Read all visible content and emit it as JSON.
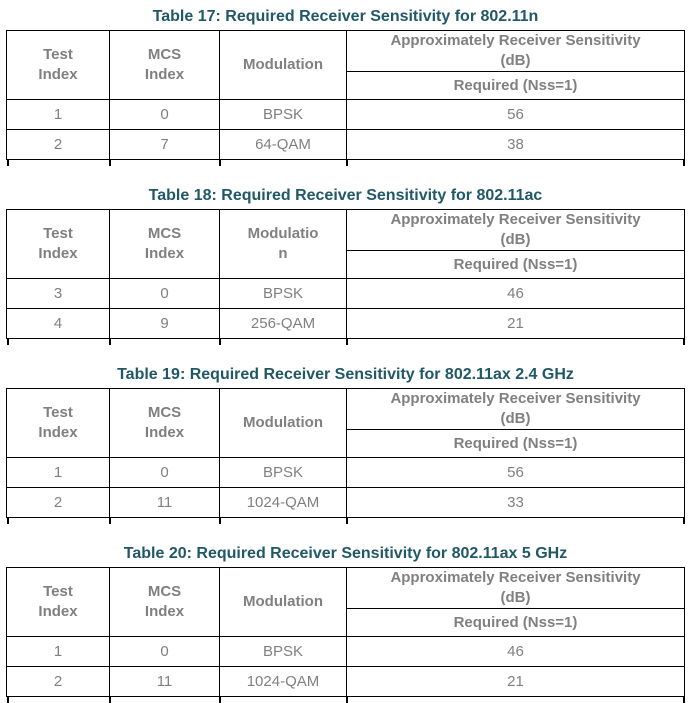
{
  "colors": {
    "title_text": "#215868",
    "table_text": "#808080",
    "border": "#000000",
    "background": "#ffffff"
  },
  "tables": [
    {
      "title": "Table 17: Required Receiver Sensitivity for 802.11n",
      "headers": {
        "test_index": "Test\nIndex",
        "mcs_index": "MCS\nIndex",
        "modulation": "Modulation",
        "sensitivity": "Approximately Receiver Sensitivity\n(dB)",
        "required": "Required (Nss=1)"
      },
      "rows": [
        {
          "test_index": "1",
          "mcs_index": "0",
          "modulation": "BPSK",
          "required": "56"
        },
        {
          "test_index": "2",
          "mcs_index": "7",
          "modulation": "64-QAM",
          "required": "38"
        }
      ]
    },
    {
      "title": "Table 18: Required Receiver Sensitivity for 802.11ac",
      "headers": {
        "test_index": "Test\nIndex",
        "mcs_index": "MCS\nIndex",
        "modulation": "Modulatio\nn",
        "sensitivity": "Approximately Receiver Sensitivity\n(dB)",
        "required": "Required (Nss=1)"
      },
      "rows": [
        {
          "test_index": "3",
          "mcs_index": "0",
          "modulation": "BPSK",
          "required": "46"
        },
        {
          "test_index": "4",
          "mcs_index": "9",
          "modulation": "256-QAM",
          "required": "21"
        }
      ]
    },
    {
      "title": "Table 19: Required Receiver Sensitivity for 802.11ax 2.4 GHz",
      "headers": {
        "test_index": "Test\nIndex",
        "mcs_index": "MCS\nIndex",
        "modulation": "Modulation",
        "sensitivity": "Approximately Receiver Sensitivity\n(dB)",
        "required": "Required (Nss=1)"
      },
      "rows": [
        {
          "test_index": "1",
          "mcs_index": "0",
          "modulation": "BPSK",
          "required": "56"
        },
        {
          "test_index": "2",
          "mcs_index": "11",
          "modulation": "1024-QAM",
          "required": "33"
        }
      ]
    },
    {
      "title": "Table 20: Required Receiver Sensitivity for 802.11ax 5 GHz",
      "headers": {
        "test_index": "Test\nIndex",
        "mcs_index": "MCS\nIndex",
        "modulation": "Modulation",
        "sensitivity": "Approximately Receiver Sensitivity\n(dB)",
        "required": "Required (Nss=1)"
      },
      "rows": [
        {
          "test_index": "1",
          "mcs_index": "0",
          "modulation": "BPSK",
          "required": "46"
        },
        {
          "test_index": "2",
          "mcs_index": "11",
          "modulation": "1024-QAM",
          "required": "21"
        }
      ]
    }
  ]
}
